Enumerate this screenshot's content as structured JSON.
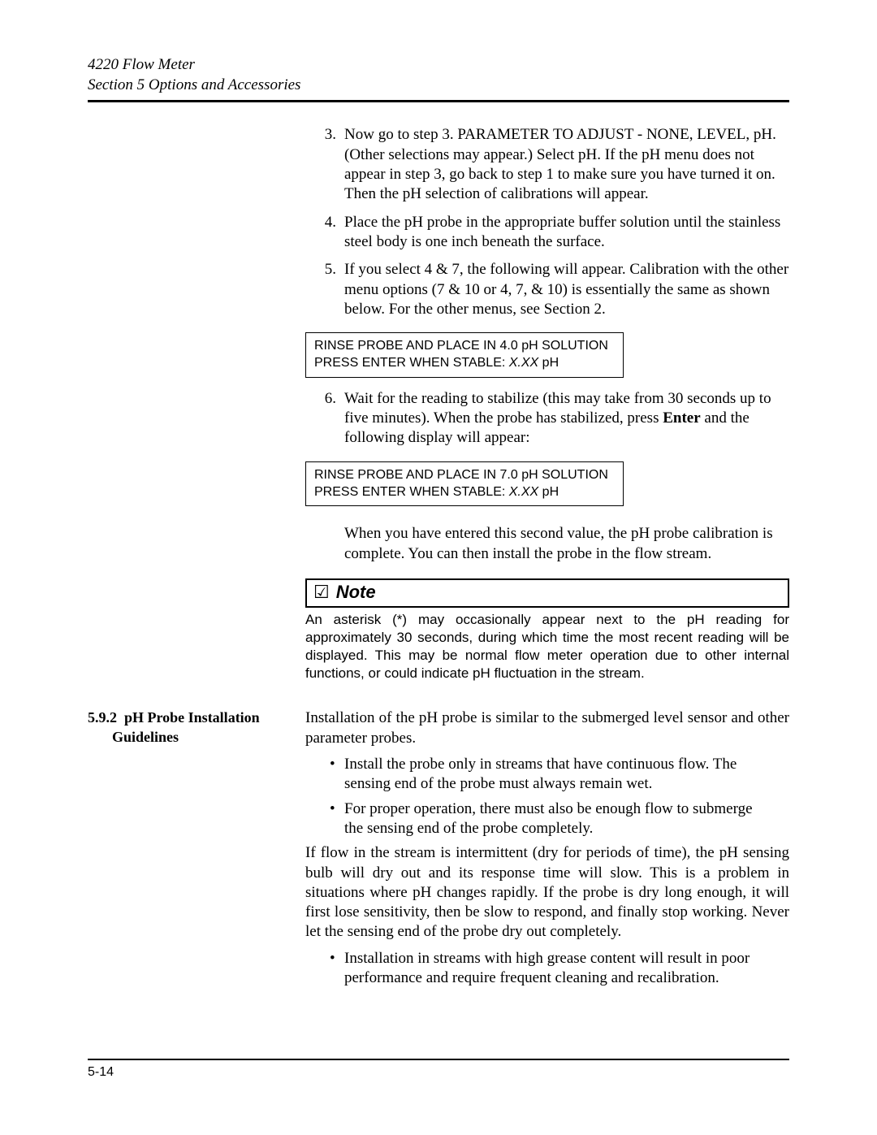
{
  "colors": {
    "bg": "#ffffff",
    "text": "#000000",
    "rule": "#000000"
  },
  "fonts": {
    "body": "Times New Roman, serif",
    "ui": "Arial, Helvetica, sans-serif",
    "body_size_pt": 14,
    "ui_size_pt": 12,
    "note_title_size_pt": 16
  },
  "header": {
    "line1": "4220 Flow Meter",
    "line2": "Section 5  Options and Accessories"
  },
  "steps": {
    "s3": {
      "num": "3.",
      "text": "Now go to step 3. PARAMETER TO ADJUST - NONE, LEVEL, pH. (Other selections may appear.) Select pH. If the pH menu does not appear in step 3, go back to step 1 to make sure you have turned it on. Then the pH selection of calibrations will appear."
    },
    "s4": {
      "num": "4.",
      "text": "Place the pH probe in the appropriate buffer solution until the stainless steel body is one inch beneath the surface."
    },
    "s5": {
      "num": "5.",
      "text": "If you select 4 & 7, the following will appear. Calibration with the other menu options (7 & 10 or 4, 7, & 10) is essentially the same as shown below. For the other menus, see Section 2."
    },
    "s6": {
      "num": "6.",
      "text_a": "Wait for the reading to stabilize (this may take from 30 seconds up to five minutes). When the probe has stabilized, press ",
      "bold": "Enter",
      "text_b": " and the following display will appear:"
    }
  },
  "display1": {
    "line1": "RINSE PROBE AND PLACE IN 4.0 pH SOLUTION",
    "line2_a": "PRESS ENTER WHEN STABLE: ",
    "line2_val": "X.XX",
    "line2_b": " pH"
  },
  "display2": {
    "line1": "RINSE PROBE AND PLACE IN 7.0 pH SOLUTION",
    "line2_a": "PRESS ENTER WHEN STABLE: ",
    "line2_val": "X.XX",
    "line2_b": " pH"
  },
  "para_after": "When you have entered this second value, the pH probe calibration is complete. You can then install the probe in the flow stream.",
  "note": {
    "icon": "☑",
    "label": "Note",
    "body": "An asterisk (*) may occasionally appear next to the pH reading for approximately 30 seconds, during which time the most recent reading will be displayed. This may be normal flow meter operation due to other internal functions, or could indicate pH fluctuation in the stream."
  },
  "section": {
    "num": "5.9.2",
    "title": "pH Probe Installation Guidelines",
    "intro": "Installation of the pH probe is similar to the submerged level sensor and other parameter probes.",
    "b1": "Install the probe only in streams that have continuous flow. The sensing end of the probe must always remain wet.",
    "b2": "For proper operation, there must also be enough flow to submerge the sensing end of the probe completely.",
    "body": "If flow in the stream is intermittent (dry for periods of time), the pH sensing bulb will dry out and its response time will slow. This is a problem in situations where pH changes rapidly. If the probe is dry long enough, it will first lose sensitivity, then be slow to respond, and finally stop working. Never let the sensing end of the probe dry out completely.",
    "b3": "Installation in streams with high grease content will result in poor performance and require frequent cleaning and recalibration."
  },
  "footer": {
    "page": "5-14"
  }
}
